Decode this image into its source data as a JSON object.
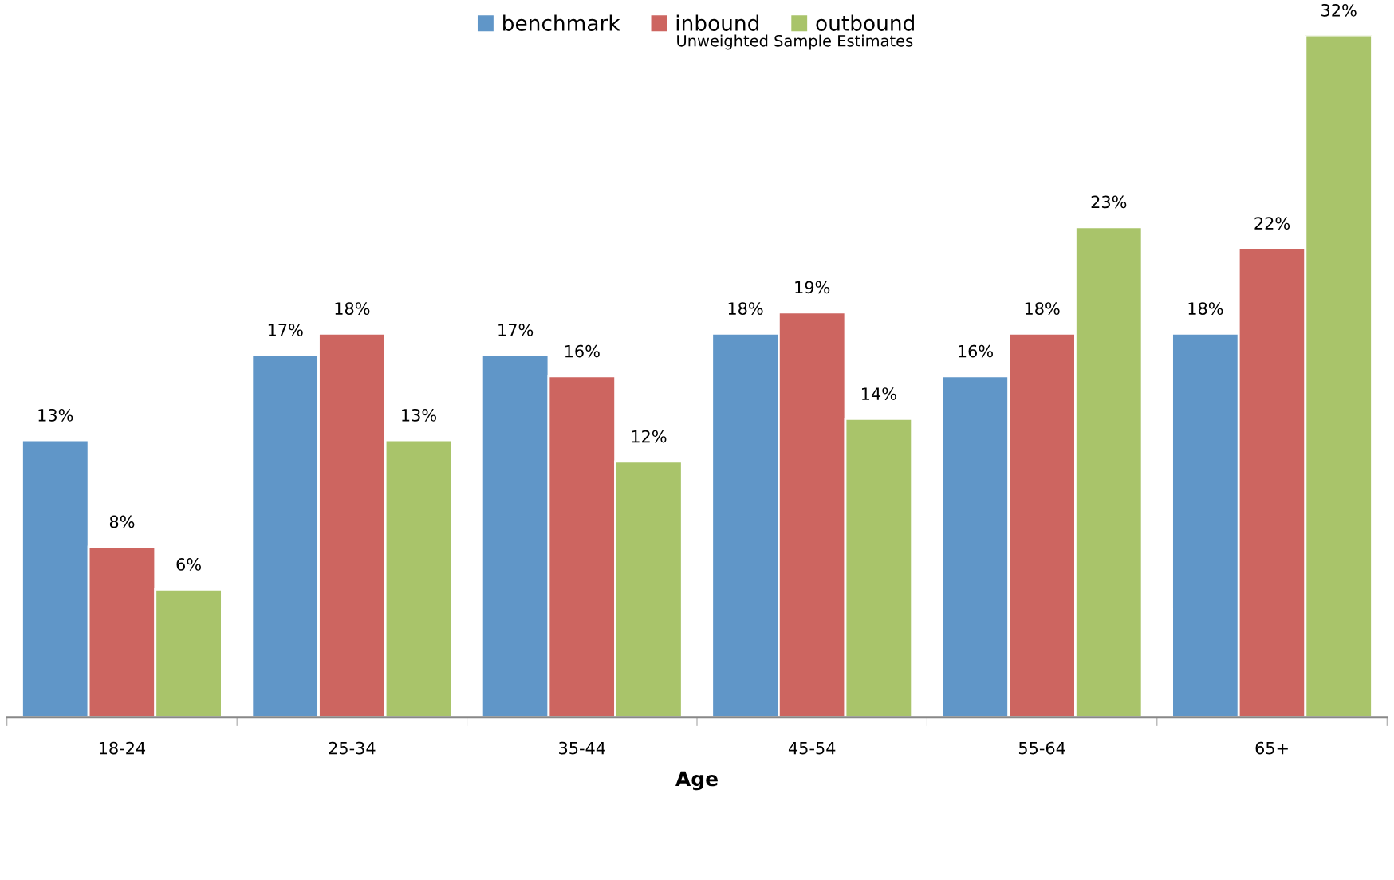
{
  "chart_data": {
    "type": "bar",
    "subtitle": "Unweighted Sample Estimates",
    "xlabel": "Age",
    "categories": [
      "18-24",
      "25-34",
      "35-44",
      "45-54",
      "55-64",
      "65+"
    ],
    "series": [
      {
        "name": "benchmark",
        "color": "#6096c8",
        "values": [
          13,
          17,
          17,
          18,
          16,
          18
        ],
        "value_labels": [
          "13%",
          "17%",
          "17%",
          "18%",
          "16%",
          "18%"
        ]
      },
      {
        "name": "inbound",
        "color": "#cd6560",
        "values": [
          8,
          18,
          16,
          19,
          18,
          22
        ],
        "value_labels": [
          "8%",
          "18%",
          "16%",
          "19%",
          "18%",
          "22%"
        ]
      },
      {
        "name": "outbound",
        "color": "#a9c46a",
        "values": [
          6,
          13,
          12,
          14,
          23,
          32
        ],
        "value_labels": [
          "6%",
          "13%",
          "12%",
          "14%",
          "23%",
          "32%"
        ]
      }
    ],
    "legend": "top",
    "grid": false,
    "tick_labels": "x"
  }
}
